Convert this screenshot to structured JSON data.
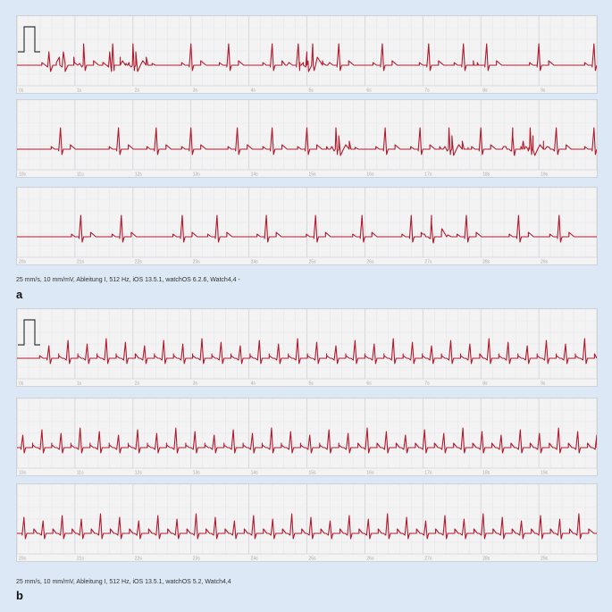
{
  "colors": {
    "page_bg": "#dce8f5",
    "grid_bg": "#f3f3f4",
    "grid_minor": "#e3e4e6",
    "grid_major": "#c9ccd1",
    "trace": "#b3182b",
    "calibration": "#3a3a3a",
    "tick_label": "#a8a8a8"
  },
  "chart_data": [
    {
      "type": "line",
      "panel": "a",
      "caption": "25 mm/s, 10 mm/mV, Ableitung I, 512 Hz, iOS 13.5.1, watchOS 6.2.6, Watch4,4 -",
      "strips": [
        {
          "x_ticks": [
            "0s",
            "1s",
            "2s",
            "3s",
            "4s",
            "5s",
            "6s",
            "7s",
            "8s",
            "9s"
          ],
          "calibration_pulse": true,
          "r_peaks_s": [
            1.15,
            1.65,
            2.0,
            3.0,
            3.65,
            4.4,
            4.85,
            5.1,
            5.55,
            6.3,
            7.1,
            7.7,
            8.1,
            9.0,
            9.95
          ],
          "ectopic_beats_s": [
            0.55,
            0.8,
            1.6,
            2.05,
            5.0
          ]
        },
        {
          "x_ticks": [
            "10s",
            "11s",
            "12s",
            "13s",
            "14s",
            "15s",
            "16s",
            "17s",
            "18s",
            "19s"
          ],
          "calibration_pulse": false,
          "r_peaks_s": [
            10.75,
            11.75,
            12.4,
            13.0,
            13.8,
            14.4,
            15.0,
            15.5,
            16.35,
            16.95,
            17.45,
            18.0,
            18.55,
            18.85,
            19.3,
            19.95
          ],
          "ectopic_beats_s": [
            15.55,
            17.5,
            18.55,
            18.9
          ]
        },
        {
          "x_ticks": [
            "20s",
            "21s",
            "22s",
            "23s",
            "24s",
            "25s",
            "26s",
            "27s",
            "28s",
            "29s"
          ],
          "calibration_pulse": false,
          "r_peaks_s": [
            21.1,
            21.8,
            22.85,
            23.45,
            24.3,
            25.15,
            25.95,
            26.8,
            27.15,
            27.75,
            28.65,
            29.35
          ],
          "ectopic_beats_s": [
            27.15
          ]
        }
      ]
    },
    {
      "type": "line",
      "panel": "b",
      "caption": "25 mm/s, 10 mm/mV, Ableitung I, 512 Hz, iOS 13.5.1, watchOS 5.2, Watch4,4",
      "strips": [
        {
          "x_ticks": [
            "0s",
            "1s",
            "2s",
            "3s",
            "4s",
            "5s",
            "6s",
            "7s",
            "8s",
            "9s"
          ],
          "calibration_pulse": true,
          "rr_interval_s": 0.33,
          "first_r_s": 0.55
        },
        {
          "x_ticks": [
            "10s",
            "11s",
            "12s",
            "13s",
            "14s",
            "15s",
            "16s",
            "17s",
            "18s",
            "19s"
          ],
          "calibration_pulse": false,
          "rr_interval_s": 0.33,
          "first_r_s": 10.1
        },
        {
          "x_ticks": [
            "20s",
            "21s",
            "22s",
            "23s",
            "24s",
            "25s",
            "26s",
            "27s",
            "28s",
            "29s"
          ],
          "calibration_pulse": false,
          "rr_interval_s": 0.33,
          "first_r_s": 20.12
        }
      ]
    }
  ]
}
